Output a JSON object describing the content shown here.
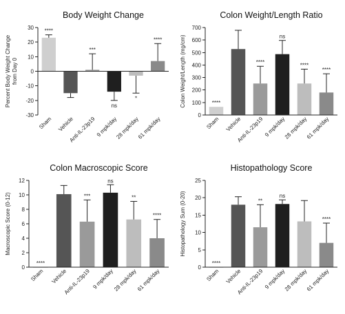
{
  "chart_data": [
    {
      "type": "bar",
      "title": "Body Weight Change",
      "ylabel": "Percent Body Weight Change from Day 0",
      "ylabel_lines": [
        "Percent Body Weight Change",
        "from Day 0"
      ],
      "categories": [
        "Sham",
        "Vehicle",
        "Anti-IL-23p19",
        "9 mpk/day",
        "28 mpk/day",
        "61 mpk/day"
      ],
      "values": [
        23,
        -15,
        1,
        -14,
        -3,
        7
      ],
      "error": [
        2,
        3,
        11,
        6,
        12,
        12
      ],
      "error_direction": [
        "up",
        "down",
        "up",
        "down",
        "down",
        "up"
      ],
      "significance": [
        "****",
        "",
        "***",
        "ns",
        "*",
        "****"
      ],
      "colors": [
        "#cfcfcf",
        "#555555",
        "#9a9a9a",
        "#1f1f1f",
        "#bdbdbd",
        "#8a8a8a"
      ],
      "ylim": [
        -30,
        30
      ],
      "yticks": [
        30,
        20,
        10,
        0,
        -10,
        -20,
        -30
      ]
    },
    {
      "type": "bar",
      "title": "Colon Weight/Length Ratio",
      "ylabel": "Colon Weight/Length (mg/cm)",
      "ylabel_lines": [
        "Colon Weight/Length (mg/cm)"
      ],
      "categories": [
        "Sham",
        "Vehicle",
        "Anti-IL-23p19",
        "9 mpk/day",
        "28 mpk/day",
        "61 mpk/day"
      ],
      "values": [
        65,
        528,
        252,
        487,
        252,
        180
      ],
      "error": [
        0,
        150,
        138,
        110,
        115,
        150
      ],
      "error_direction": [
        "up",
        "up",
        "up",
        "up",
        "up",
        "up"
      ],
      "significance": [
        "****",
        "",
        "****",
        "ns",
        "****",
        "****"
      ],
      "colors": [
        "#cfcfcf",
        "#555555",
        "#9a9a9a",
        "#1f1f1f",
        "#bdbdbd",
        "#8a8a8a"
      ],
      "ylim": [
        0,
        700
      ],
      "yticks": [
        700,
        600,
        500,
        400,
        300,
        200,
        100,
        0
      ]
    },
    {
      "type": "bar",
      "title": "Colon Macroscopic Score",
      "ylabel": "Macroscopic Score (0-12)",
      "ylabel_lines": [
        "Macroscopic Score (0-12)"
      ],
      "categories": [
        "Sham",
        "Vehicle",
        "Anti-IL-23p19",
        "9 mpk/day",
        "28 mpk/day",
        "61 mpk/day"
      ],
      "values": [
        0,
        10.1,
        6.3,
        10.3,
        6.6,
        4.0
      ],
      "error": [
        0,
        1.2,
        3.0,
        1.1,
        2.5,
        2.6
      ],
      "error_direction": [
        "up",
        "up",
        "up",
        "up",
        "up",
        "up"
      ],
      "significance": [
        "****",
        "",
        "***",
        "ns",
        "**",
        "****"
      ],
      "colors": [
        "#cfcfcf",
        "#555555",
        "#9a9a9a",
        "#1f1f1f",
        "#bdbdbd",
        "#8a8a8a"
      ],
      "ylim": [
        0,
        12
      ],
      "yticks": [
        12,
        10,
        8,
        6,
        4,
        2,
        0
      ]
    },
    {
      "type": "bar",
      "title": "Histopathology Score",
      "ylabel": "Histopathology Sum (0-20)",
      "ylabel_lines": [
        "Histopathology Sum (0-20)"
      ],
      "categories": [
        "Sham",
        "Vehicle",
        "Anti-IL-23p19",
        "9 mpk/day",
        "28 mpk/day",
        "61 mpk/day"
      ],
      "values": [
        0,
        18,
        11.5,
        18.2,
        13.2,
        7
      ],
      "error": [
        0,
        2.3,
        6.5,
        1.2,
        6,
        5.7
      ],
      "error_direction": [
        "up",
        "up",
        "up",
        "up",
        "up",
        "up"
      ],
      "significance": [
        "****",
        "",
        "**",
        "ns",
        "",
        "****"
      ],
      "colors": [
        "#cfcfcf",
        "#555555",
        "#9a9a9a",
        "#1f1f1f",
        "#bdbdbd",
        "#8a8a8a"
      ],
      "ylim": [
        0,
        25
      ],
      "yticks": [
        25,
        20,
        15,
        10,
        5,
        0
      ]
    }
  ]
}
